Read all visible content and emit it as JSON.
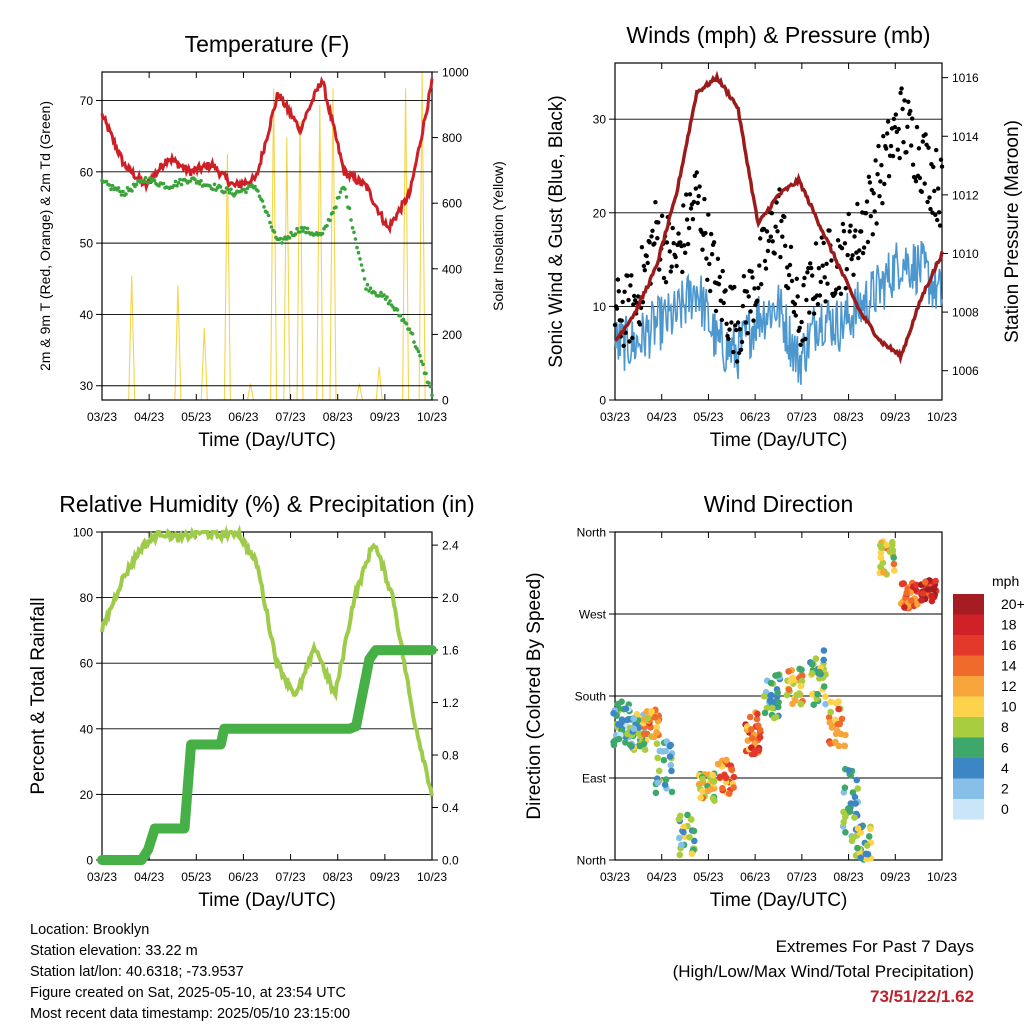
{
  "x_ticks": [
    "03/23",
    "04/23",
    "05/23",
    "06/23",
    "07/23",
    "08/23",
    "09/23",
    "10/23"
  ],
  "colors": {
    "temp_red": "#cc1f26",
    "dewpoint_green": "#3aa43a",
    "solar_yellow": "#f6d54a",
    "gust_black": "#000000",
    "wind_blue": "#4d97cf",
    "pressure_maroon": "#9b1b1b",
    "rh_lightgreen": "#9ecb4a",
    "precip_green": "#46b046"
  },
  "chart_data": [
    {
      "type": "line",
      "title": "Temperature (F)",
      "xlabel": "Time (Day/UTC)",
      "ylabel": "2m & 9m T (Red, Orange) & 2m Td (Green)",
      "y2label": "Solar Insolation (Yellow)",
      "ylim": [
        28,
        74
      ],
      "y_ticks": [
        30,
        40,
        50,
        60,
        70
      ],
      "y2lim": [
        0,
        1000
      ],
      "y2_ticks": [
        0,
        200,
        400,
        600,
        800,
        1000
      ],
      "grid": true,
      "x": [
        "03/23",
        "04/23",
        "05/23",
        "06/23",
        "07/23",
        "08/23",
        "09/23",
        "10/23"
      ],
      "series": [
        {
          "name": "2m T",
          "values": [
            68,
            62,
            61,
            59,
            71,
            64,
            59,
            72.5
          ]
        },
        {
          "name": "2m Td",
          "values": [
            58,
            59,
            58,
            57,
            50,
            52,
            45,
            28.5
          ]
        },
        {
          "name": "Solar Insolation",
          "values": [
            0,
            0,
            0,
            0,
            1000,
            1000,
            0,
            1000
          ]
        }
      ]
    },
    {
      "type": "line",
      "title": "Winds (mph) & Pressure (mb)",
      "xlabel": "Time (Day/UTC)",
      "ylabel": "Sonic Wind & Gust (Blue, Black)",
      "y2label": "Station Pressure (Maroon)",
      "ylim": [
        0,
        36
      ],
      "y_ticks": [
        0,
        10,
        20,
        30
      ],
      "y2lim": [
        1005,
        1016.5
      ],
      "y2_ticks": [
        1006,
        1008,
        1010,
        1012,
        1014,
        1016
      ],
      "grid": true,
      "x": [
        "03/23",
        "04/23",
        "05/23",
        "06/23",
        "07/23",
        "08/23",
        "09/23",
        "10/23"
      ],
      "series": [
        {
          "name": "Sonic Wind",
          "values": [
            5,
            7,
            8,
            5,
            6,
            7,
            10,
            12
          ]
        },
        {
          "name": "Gust",
          "values": [
            10,
            18,
            20,
            12,
            15,
            16,
            25,
            28
          ]
        },
        {
          "name": "Station Pressure",
          "values": [
            1007,
            1009,
            1016,
            1010,
            1011.5,
            1009.5,
            1008,
            1010
          ]
        }
      ]
    },
    {
      "type": "line",
      "title": "Relative Humidity (%) & Precipitation (in)",
      "xlabel": "Time (Day/UTC)",
      "ylabel": "Percent & Total Rainfall",
      "ylim": [
        0,
        100
      ],
      "y_ticks": [
        0,
        20,
        40,
        60,
        80,
        100
      ],
      "y2lim": [
        0,
        2.5
      ],
      "y2_ticks": [
        "0.0",
        "0.4",
        "0.8",
        "1.2",
        "1.6",
        "2.0",
        "2.4"
      ],
      "grid": true,
      "x": [
        "03/23",
        "04/23",
        "05/23",
        "06/23",
        "07/23",
        "08/23",
        "09/23",
        "10/23"
      ],
      "series": [
        {
          "name": "Relative Humidity",
          "values": [
            70,
            99,
            99,
            99,
            70,
            60,
            97,
            20
          ]
        },
        {
          "name": "Precipitation",
          "values": [
            0,
            0.24,
            0.88,
            1.0,
            1.0,
            1.02,
            1.6,
            1.6
          ]
        }
      ]
    },
    {
      "type": "scatter",
      "title": "Wind Direction",
      "xlabel": "Time (Day/UTC)",
      "ylabel": "Direction (Colored By Speed)",
      "y_ticks": [
        "North",
        "East",
        "South",
        "West",
        "North"
      ],
      "ylim": [
        0,
        360
      ],
      "grid": true,
      "legend_title": "mph",
      "legend_labels": [
        "20+",
        "18",
        "16",
        "14",
        "12",
        "10",
        "8",
        "6",
        "4",
        "2",
        "0"
      ],
      "legend_colors": [
        "#a51c22",
        "#cf2127",
        "#e3392a",
        "#f06a2b",
        "#f7a43a",
        "#fcd34a",
        "#a8cd3f",
        "#3ea76a",
        "#3d86c5",
        "#86c0e8",
        "#c9e5f7"
      ],
      "x": [
        "03/23",
        "04/23",
        "05/23",
        "06/23",
        "07/23",
        "08/23",
        "09/23",
        "10/23"
      ],
      "series": [
        {
          "name": "Direction",
          "values": [
            150,
            140,
            80,
            140,
            250,
            170,
            60,
            290
          ]
        }
      ]
    }
  ],
  "info_lines": [
    "Location: Brooklyn",
    "Station elevation: 33.22 m",
    "Station lat/lon: 40.6318; -73.9537",
    "Figure created on Sat, 2025-05-10, at 23:54 UTC",
    "Most recent data timestamp: 2025/05/10 23:15:00"
  ],
  "extremes": {
    "line1": "Extremes For Past 7 Days",
    "line2": "(High/Low/Max Wind/Total Precipitation)",
    "values": "73/51/22/1.62"
  }
}
